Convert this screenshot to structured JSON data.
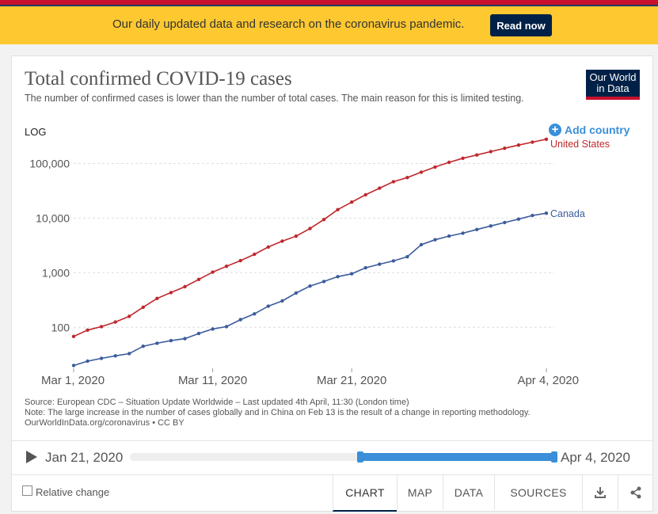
{
  "banner": {
    "text": "Our daily updated data and research on the coronavirus pandemic.",
    "button": "Read now"
  },
  "chart_title": "Total confirmed COVID-19 cases",
  "chart_subtitle": "The number of confirmed cases is lower than the number of total cases. The main reason for this is limited testing.",
  "logo": {
    "line1": "Our World",
    "line2": "in Data"
  },
  "controls": {
    "scale": "LOG",
    "add_country": "Add country"
  },
  "colors": {
    "accent": "#3a8fd8",
    "us": "#c0282d",
    "canada": "#3c5c9c",
    "brand": "#002147",
    "banner": "#fdc830"
  },
  "chart_data": {
    "type": "line",
    "yscale": "log",
    "x": [
      "Mar 1",
      "Mar 2",
      "Mar 3",
      "Mar 4",
      "Mar 5",
      "Mar 6",
      "Mar 7",
      "Mar 8",
      "Mar 9",
      "Mar 10",
      "Mar 11",
      "Mar 12",
      "Mar 13",
      "Mar 14",
      "Mar 15",
      "Mar 16",
      "Mar 17",
      "Mar 18",
      "Mar 19",
      "Mar 20",
      "Mar 21",
      "Mar 22",
      "Mar 23",
      "Mar 24",
      "Mar 25",
      "Mar 26",
      "Mar 27",
      "Mar 28",
      "Mar 29",
      "Mar 30",
      "Mar 31",
      "Apr 1",
      "Apr 2",
      "Apr 3",
      "Apr 4"
    ],
    "xticks": [
      "Mar 1, 2020",
      "Mar 11, 2020",
      "Mar 21, 2020",
      "Apr 4, 2020"
    ],
    "yticks": [
      "100",
      "1,000",
      "10,000",
      "100,000"
    ],
    "ytick_values": [
      100,
      1000,
      10000,
      100000
    ],
    "series": [
      {
        "name": "United States",
        "values": [
          68,
          89,
          103,
          125,
          159,
          233,
          338,
          433,
          554,
          754,
          1025,
          1312,
          1663,
          2174,
          2951,
          3774,
          4661,
          6427,
          9415,
          14250,
          19624,
          26747,
          35206,
          46442,
          55231,
          69194,
          85991,
          104686,
          124665,
          143025,
          164620,
          189618,
          216722,
          245540,
          277828
        ]
      },
      {
        "name": "Canada",
        "values": [
          20,
          24,
          27,
          30,
          33,
          45,
          51,
          57,
          62,
          77,
          93,
          103,
          138,
          176,
          244,
          304,
          424,
          569,
          690,
          846,
          954,
          1231,
          1430,
          1646,
          1959,
          3251,
          4018,
          4675,
          5293,
          6163,
          7163,
          8286,
          9563,
          11131,
          12283
        ]
      }
    ]
  },
  "source": {
    "line1": "Source: European CDC – Situation Update Worldwide – Last updated 4th April, 11:30 (London time)",
    "line2": "Note: The large increase in the number of cases globally and in China on Feb 13 is the result of a change in reporting methodology.",
    "line3": "OurWorldInData.org/coronavirus • CC BY"
  },
  "timeline": {
    "start": "Jan 21, 2020",
    "end": "Apr 4, 2020",
    "range_start_fraction": 0.542,
    "range_end_fraction": 1.0
  },
  "footer": {
    "relative_change": "Relative change",
    "tabs": [
      "CHART",
      "MAP",
      "DATA",
      "SOURCES"
    ],
    "active_tab": "CHART",
    "download_icon": "download-icon",
    "share_icon": "share-icon"
  }
}
